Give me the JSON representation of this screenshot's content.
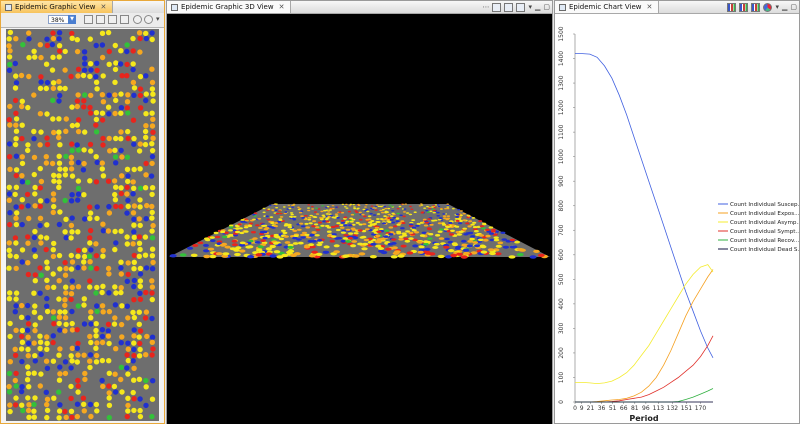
{
  "graphic_view": {
    "tab_title": "Epidemic Graphic View",
    "zoom": "38%",
    "tools": [
      "grid-icon",
      "scale-icon",
      "fit-icon",
      "zoom-out-icon",
      "zoom-in-icon",
      "menu-icon"
    ],
    "background_color": "#6e6e6e",
    "colors": {
      "susceptible": "#f5e81c",
      "exposed": "#f6a820",
      "asymptomatic": "#f5e81c",
      "symptomatic": "#e8251d",
      "recovered": "#33c13a",
      "dead": "#2030cf"
    }
  },
  "view3d": {
    "tab_title": "Epidemic Graphic 3D View",
    "background_color": "#000000",
    "plane_color": "#6e6e6e",
    "tools": [
      "arrange-icon",
      "grid-icon",
      "layout-icon",
      "menu-icon",
      "minimize-icon",
      "maximize-icon"
    ]
  },
  "chart": {
    "tab_title": "Epidemic Chart View",
    "tools": [
      "bar-chart-icon",
      "stacked-bar-icon",
      "histogram-icon",
      "pie-chart-icon",
      "menu-icon",
      "minimize-icon",
      "maximize-icon"
    ]
  },
  "chart_data": {
    "type": "line",
    "xlabel": "Period",
    "ylabel": "",
    "xlim": [
      0,
      187
    ],
    "ylim": [
      0,
      1500
    ],
    "x_ticks": [
      0,
      9,
      21,
      36,
      51,
      66,
      81,
      96,
      113,
      132,
      151,
      170
    ],
    "y_ticks": [
      0,
      100,
      200,
      300,
      400,
      500,
      600,
      700,
      800,
      900,
      1000,
      1100,
      1200,
      1300,
      1400,
      1500
    ],
    "legend_position": "right",
    "x": [
      0,
      10,
      20,
      30,
      40,
      50,
      60,
      70,
      80,
      90,
      100,
      110,
      120,
      130,
      140,
      150,
      160,
      170,
      180,
      187
    ],
    "series": [
      {
        "name": "Count Individual Suscep...",
        "color": "#4060e0",
        "values": [
          1420,
          1420,
          1418,
          1405,
          1370,
          1320,
          1250,
          1170,
          1080,
          990,
          900,
          810,
          720,
          630,
          540,
          450,
          370,
          290,
          220,
          180
        ]
      },
      {
        "name": "Count Individual Expos...",
        "color": "#f5a020",
        "values": [
          0,
          0,
          0,
          2,
          5,
          8,
          10,
          15,
          25,
          40,
          65,
          100,
          150,
          210,
          280,
          350,
          410,
          460,
          510,
          540
        ]
      },
      {
        "name": "Count Individual Asymp...",
        "color": "#f4ec30",
        "values": [
          80,
          80,
          78,
          75,
          78,
          85,
          100,
          120,
          150,
          190,
          230,
          280,
          330,
          380,
          430,
          480,
          520,
          550,
          560,
          530
        ]
      },
      {
        "name": "Count Individual Sympt...",
        "color": "#e0302a",
        "values": [
          0,
          0,
          0,
          0,
          0,
          2,
          5,
          10,
          15,
          20,
          30,
          45,
          60,
          80,
          100,
          125,
          150,
          185,
          230,
          270
        ]
      },
      {
        "name": "Count Individual Recov...",
        "color": "#30b040",
        "values": [
          0,
          0,
          0,
          0,
          0,
          0,
          0,
          0,
          0,
          0,
          0,
          0,
          0,
          0,
          2,
          10,
          20,
          32,
          45,
          55
        ]
      },
      {
        "name": "Count Individual Dead S...",
        "color": "#101040",
        "values": [
          0,
          0,
          0,
          0,
          0,
          0,
          0,
          0,
          0,
          0,
          0,
          0,
          0,
          0,
          0,
          0,
          0,
          0,
          0,
          0
        ]
      }
    ]
  }
}
